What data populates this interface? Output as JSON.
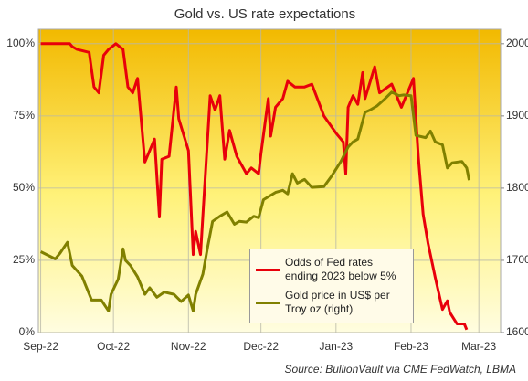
{
  "chart_data": {
    "type": "line",
    "title": "Gold vs. US rate expectations",
    "source": "Source: BullionVault via CME FedWatch, LBMA",
    "xlim": [
      -1,
      190
    ],
    "xticks": [
      {
        "value": 0,
        "label": "Sep-22"
      },
      {
        "value": 30,
        "label": "Oct-22"
      },
      {
        "value": 61,
        "label": "Nov-22"
      },
      {
        "value": 91,
        "label": "Dec-22"
      },
      {
        "value": 122,
        "label": "Jan-23"
      },
      {
        "value": 153,
        "label": "Feb-23"
      },
      {
        "value": 181,
        "label": "Mar-23"
      }
    ],
    "ylim": [
      0,
      105
    ],
    "yticks": [
      {
        "value": 0,
        "label": "0%"
      },
      {
        "value": 25,
        "label": "25%"
      },
      {
        "value": 50,
        "label": "50%"
      },
      {
        "value": 75,
        "label": "75%"
      },
      {
        "value": 100,
        "label": "100%"
      }
    ],
    "y2lim": [
      1600,
      2020
    ],
    "y2ticks": [
      1600,
      1700,
      1800,
      1900,
      2000
    ],
    "grid": true,
    "legend": "lower right",
    "series": [
      {
        "name": "Odds of Fed rates ending 2023 below 5%",
        "color": "#e8000b",
        "x": [
          0,
          12,
          13,
          15,
          20,
          22,
          24,
          26,
          28,
          31,
          34,
          36,
          38,
          40,
          43,
          47,
          49,
          50,
          53,
          56,
          57,
          61,
          63,
          64,
          66,
          70,
          72,
          74,
          76,
          78,
          81,
          83,
          85,
          87,
          90,
          91,
          94,
          95,
          97,
          100,
          102,
          105,
          109,
          112,
          117,
          122,
          125,
          126,
          127,
          129,
          131,
          133,
          134,
          138,
          140,
          145,
          149,
          153,
          154,
          156,
          158,
          160,
          163,
          166,
          168,
          169,
          172,
          175,
          176
        ],
        "values": [
          100,
          100,
          99,
          98,
          97,
          85,
          83,
          96,
          98,
          100,
          98,
          85,
          83,
          88,
          59,
          67,
          40,
          60,
          61,
          85,
          74,
          63,
          27,
          35,
          27,
          82,
          77,
          82,
          60,
          70,
          61,
          58,
          55,
          57,
          55,
          62,
          81,
          68,
          78,
          81,
          87,
          85,
          85,
          86,
          75,
          69,
          66,
          55,
          78,
          82,
          79,
          90,
          81,
          92,
          83,
          86,
          78,
          86,
          88,
          61,
          41,
          31,
          19,
          8,
          11,
          7,
          3,
          3,
          1
        ]
      },
      {
        "name": "Gold price in US$ per Troy oz (right)",
        "color": "#808000",
        "axis": "y2",
        "x": [
          0,
          6,
          8,
          11,
          13,
          17,
          21,
          25,
          28,
          29,
          32,
          34,
          35,
          37,
          40,
          43,
          45,
          48,
          51,
          55,
          58,
          61,
          63,
          64,
          67,
          69,
          71,
          74,
          77,
          80,
          82,
          85,
          88,
          90,
          92,
          94,
          97,
          100,
          102,
          104,
          106,
          109,
          112,
          117,
          120,
          124,
          127,
          129,
          131,
          134,
          136,
          139,
          142,
          145,
          148,
          150,
          153,
          155,
          159,
          161,
          163,
          166,
          168,
          170,
          174,
          176,
          177
        ],
        "values": [
          1712,
          1702,
          1710,
          1725,
          1693,
          1678,
          1645,
          1645,
          1630,
          1653,
          1674,
          1716,
          1700,
          1693,
          1677,
          1653,
          1662,
          1649,
          1656,
          1653,
          1643,
          1652,
          1630,
          1653,
          1681,
          1719,
          1754,
          1761,
          1767,
          1750,
          1754,
          1753,
          1761,
          1759,
          1784,
          1788,
          1794,
          1797,
          1792,
          1820,
          1807,
          1812,
          1801,
          1802,
          1816,
          1837,
          1857,
          1864,
          1868,
          1905,
          1908,
          1914,
          1923,
          1933,
          1928,
          1929,
          1928,
          1873,
          1870,
          1879,
          1864,
          1860,
          1828,
          1835,
          1837,
          1828,
          1811
        ]
      }
    ]
  }
}
